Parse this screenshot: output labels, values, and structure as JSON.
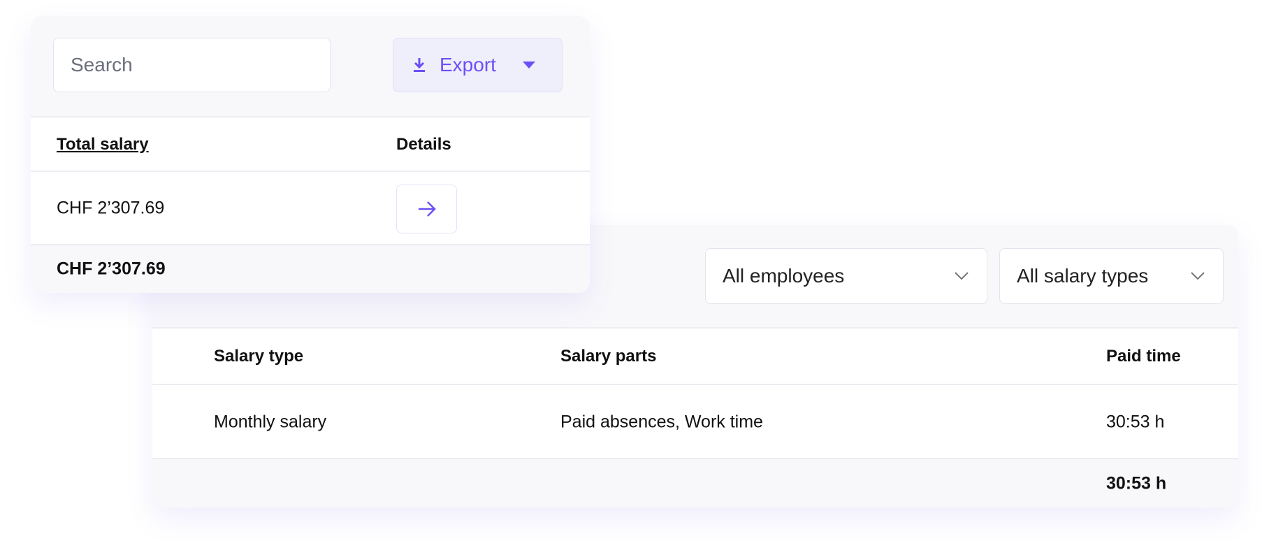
{
  "summary": {
    "search_placeholder": "Search",
    "export_label": "Export",
    "columns": [
      "Total salary",
      "Details"
    ],
    "rows": [
      {
        "total_salary": "CHF 2’307.69"
      }
    ],
    "footer_total": "CHF 2’307.69"
  },
  "detail": {
    "filters": {
      "employees": "All employees",
      "salary_types": "All salary types"
    },
    "columns": [
      "Salary type",
      "Salary parts",
      "Paid time"
    ],
    "rows": [
      {
        "salary_type": "Monthly salary",
        "salary_parts": "Paid absences, Work time",
        "paid_time": "30:53 h"
      }
    ],
    "footer_total": "30:53 h"
  },
  "colors": {
    "accent": "#6c4ff5"
  }
}
